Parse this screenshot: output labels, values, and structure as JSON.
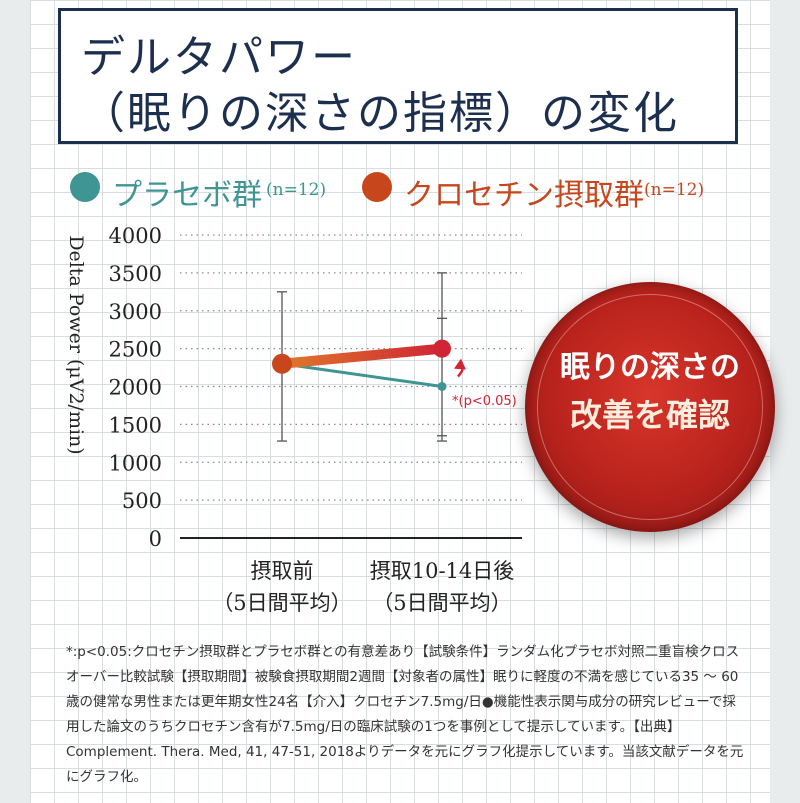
{
  "title": {
    "line1": "デルタパワー",
    "line2": "（眠りの深さの指標）の変化"
  },
  "legend": {
    "placebo": {
      "label": "プラセボ群",
      "n": "(n=12)",
      "color": "#3f9494"
    },
    "crocetin": {
      "label": "クロセチン摂取群",
      "n": "(n=12)",
      "color": "#c8461b"
    }
  },
  "badge": {
    "line1": "眠りの深さの",
    "line2": "改善を確認"
  },
  "chart_data": {
    "type": "line",
    "ylabel": "Delta Power (μV2/min)",
    "ylim": [
      0,
      4000
    ],
    "yticks": [
      "4000",
      "3500",
      "3000",
      "2500",
      "2000",
      "1500",
      "1000",
      "500",
      "0"
    ],
    "categories": [
      {
        "line1": "摂取前",
        "line2": "（5日間平均）"
      },
      {
        "line1": "摂取10-14日後",
        "line2": "（5日間平均）"
      }
    ],
    "series": [
      {
        "name": "プラセボ群",
        "values": [
          2300,
          2000
        ],
        "err_high": [
          3250,
          3500
        ],
        "err_low": [
          1280,
          1350
        ],
        "color": "#3f9494"
      },
      {
        "name": "クロセチン摂取群",
        "values": [
          2300,
          2500
        ],
        "err_high": [
          3250,
          2900
        ],
        "err_low": [
          1280,
          1280
        ],
        "color": "#c8461b"
      }
    ],
    "annotation": "*(p<0.05)",
    "grid": true
  },
  "footnote": "*:p<0.05:クロセチン摂取群とプラセボ群との有意差あり【試験条件】ランダム化プラセボ対照二重盲検クロスオーバー比較試験【摂取期間】被験食摂取期間2週間【対象者の属性】眠りに軽度の不満を感じている35 ～ 60歳の健常な男性または更年期女性24名【介入】クロセチン7.5mg/日●機能性表示関与成分の研究レビューで採用した論文のうちクロセチン含有が7.5mg/日の臨床試験の1つを事例として提示しています。【出典】Complement. Thera. Med, 41, 47-51, 2018よりデータを元にグラフ化提示しています。当該文献データを元にグラフ化。"
}
